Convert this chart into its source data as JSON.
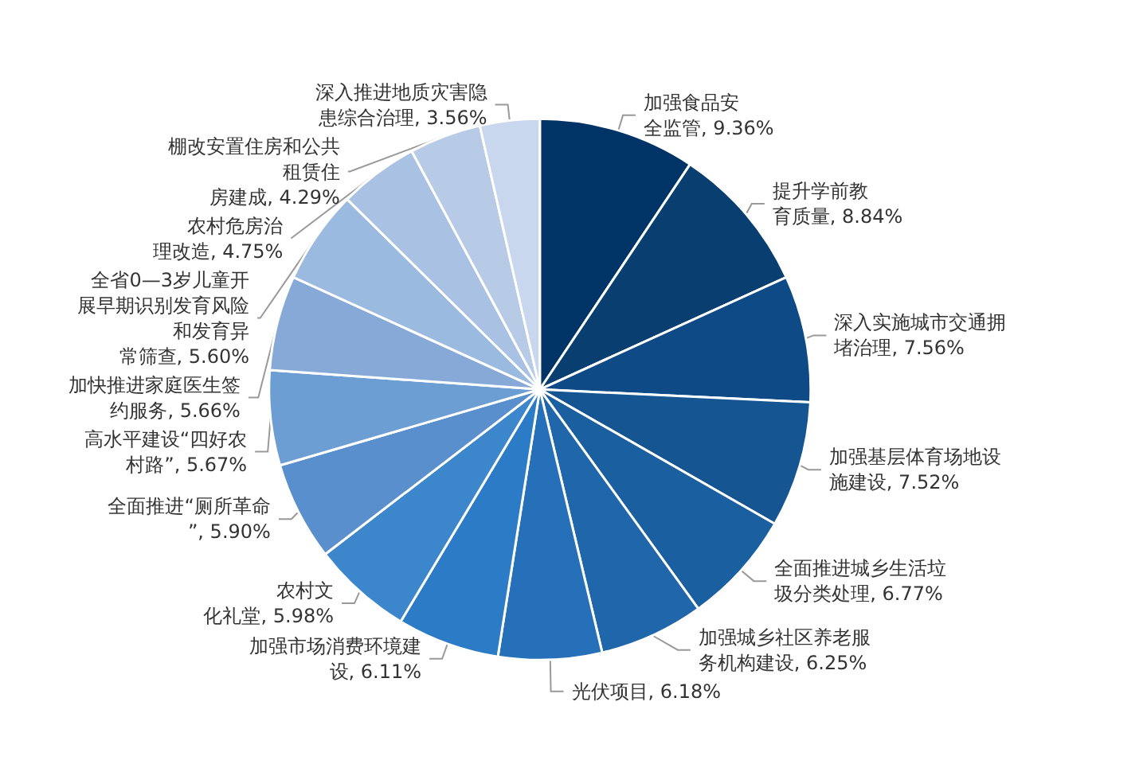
{
  "chart_data": {
    "type": "pie",
    "categories": [
      "加强食品安全监管",
      "提升学前教育质量",
      "深入实施城市交通拥堵治理",
      "加强基层体育场地设施建设",
      "全面推进城乡生活垃圾分类处理",
      "加强城乡社区养老服务机构建设",
      "光伏项目",
      "加强市场消费环境建设",
      "农村文化礼堂",
      "全面推进“厕所革命”",
      "高水平建设“四好农村路”",
      "加快推进家庭医生签约服务",
      "全省0—3岁儿童开展早期识别发育风险和发育异常筛查",
      "农村危房治理改造",
      "棚改安置住房和公共租赁住房建成",
      "深入推进地质灾害隐患综合治理"
    ],
    "values": [
      9.36,
      8.84,
      7.56,
      7.52,
      6.77,
      6.25,
      6.18,
      6.11,
      5.98,
      5.9,
      5.67,
      5.66,
      5.6,
      4.75,
      4.29,
      3.56
    ],
    "value_labels": [
      "9.36%",
      "8.84%",
      "7.56%",
      "7.52%",
      "6.77%",
      "6.25%",
      "6.18%",
      "6.11%",
      "5.98%",
      "5.90%",
      "5.67%",
      "5.66%",
      "5.60%",
      "4.75%",
      "4.29%",
      "3.56%"
    ],
    "colors": [
      "#003366",
      "#083f70",
      "#0e4a85",
      "#155591",
      "#1a5fa0",
      "#1f66aa",
      "#2570b8",
      "#2b7bc6",
      "#3c86cb",
      "#5a8fce",
      "#6c9dd3",
      "#86a9d8",
      "#9bbae0",
      "#a9c1e2",
      "#b8cbe6",
      "#c8d6ee"
    ],
    "legend": false
  }
}
